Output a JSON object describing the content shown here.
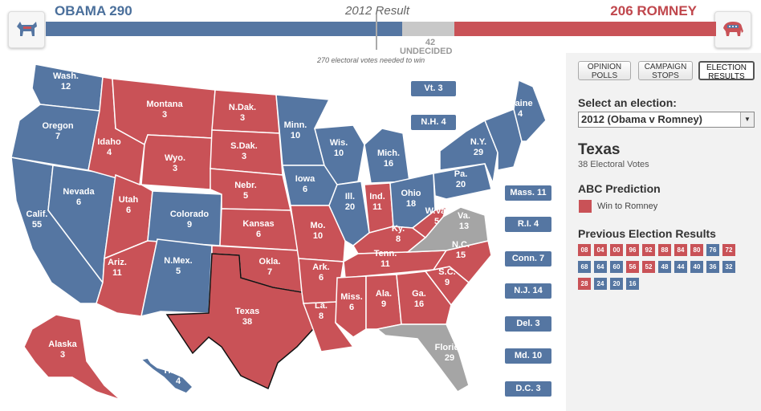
{
  "header": {
    "dem_score": "OBAMA 290",
    "rep_score": "206 ROMNEY",
    "title": "2012 Result",
    "undecided_count": "42",
    "undecided_label": "UNDECIDED",
    "needed_note": "270 electoral votes needed to win"
  },
  "colors": {
    "dem": "#5576a2",
    "rep": "#c95257",
    "undecided": "#a5a5a5"
  },
  "icons": {
    "dem_logo": "democrat-donkey-icon",
    "rep_logo": "republican-elephant-icon"
  },
  "states": [
    {
      "id": "wa",
      "name": "Wash.",
      "votes": "12",
      "party": "dem"
    },
    {
      "id": "or",
      "name": "Oregon",
      "votes": "7",
      "party": "dem"
    },
    {
      "id": "ca",
      "name": "Calif.",
      "votes": "55",
      "party": "dem"
    },
    {
      "id": "nv",
      "name": "Nevada",
      "votes": "6",
      "party": "dem"
    },
    {
      "id": "id",
      "name": "Idaho",
      "votes": "4",
      "party": "rep"
    },
    {
      "id": "mt",
      "name": "Montana",
      "votes": "3",
      "party": "rep"
    },
    {
      "id": "wy",
      "name": "Wyo.",
      "votes": "3",
      "party": "rep"
    },
    {
      "id": "ut",
      "name": "Utah",
      "votes": "6",
      "party": "rep"
    },
    {
      "id": "az",
      "name": "Ariz.",
      "votes": "11",
      "party": "rep"
    },
    {
      "id": "co",
      "name": "Colorado",
      "votes": "9",
      "party": "dem"
    },
    {
      "id": "nm",
      "name": "N.Mex.",
      "votes": "5",
      "party": "dem"
    },
    {
      "id": "nd",
      "name": "N.Dak.",
      "votes": "3",
      "party": "rep"
    },
    {
      "id": "sd",
      "name": "S.Dak.",
      "votes": "3",
      "party": "rep"
    },
    {
      "id": "ne",
      "name": "Nebr.",
      "votes": "5",
      "party": "rep"
    },
    {
      "id": "ks",
      "name": "Kansas",
      "votes": "6",
      "party": "rep"
    },
    {
      "id": "ok",
      "name": "Okla.",
      "votes": "7",
      "party": "rep"
    },
    {
      "id": "tx",
      "name": "Texas",
      "votes": "38",
      "party": "rep"
    },
    {
      "id": "mn",
      "name": "Minn.",
      "votes": "10",
      "party": "dem"
    },
    {
      "id": "ia",
      "name": "Iowa",
      "votes": "6",
      "party": "dem"
    },
    {
      "id": "mo",
      "name": "Mo.",
      "votes": "10",
      "party": "rep"
    },
    {
      "id": "ar",
      "name": "Ark.",
      "votes": "6",
      "party": "rep"
    },
    {
      "id": "la",
      "name": "La.",
      "votes": "8",
      "party": "rep"
    },
    {
      "id": "wi",
      "name": "Wis.",
      "votes": "10",
      "party": "dem"
    },
    {
      "id": "il",
      "name": "Ill.",
      "votes": "20",
      "party": "dem"
    },
    {
      "id": "mi",
      "name": "Mich.",
      "votes": "16",
      "party": "dem"
    },
    {
      "id": "in",
      "name": "Ind.",
      "votes": "11",
      "party": "rep"
    },
    {
      "id": "oh",
      "name": "Ohio",
      "votes": "18",
      "party": "dem"
    },
    {
      "id": "ky",
      "name": "Ky.",
      "votes": "8",
      "party": "rep"
    },
    {
      "id": "tn",
      "name": "Tenn.",
      "votes": "11",
      "party": "rep"
    },
    {
      "id": "ms",
      "name": "Miss.",
      "votes": "6",
      "party": "rep"
    },
    {
      "id": "al",
      "name": "Ala.",
      "votes": "9",
      "party": "rep"
    },
    {
      "id": "ga",
      "name": "Ga.",
      "votes": "16",
      "party": "rep"
    },
    {
      "id": "fl",
      "name": "Florida",
      "votes": "29",
      "party": "undecided"
    },
    {
      "id": "sc",
      "name": "S.C.",
      "votes": "9",
      "party": "rep"
    },
    {
      "id": "nc",
      "name": "N.C.",
      "votes": "15",
      "party": "rep"
    },
    {
      "id": "va",
      "name": "Va.",
      "votes": "13",
      "party": "undecided"
    },
    {
      "id": "wv",
      "name": "W.Va.",
      "votes": "5",
      "party": "rep"
    },
    {
      "id": "pa",
      "name": "Pa.",
      "votes": "20",
      "party": "dem"
    },
    {
      "id": "ny",
      "name": "N.Y.",
      "votes": "29",
      "party": "dem"
    },
    {
      "id": "me",
      "name": "Maine",
      "votes": "4",
      "party": "dem"
    },
    {
      "id": "ak",
      "name": "Alaska",
      "votes": "3",
      "party": "rep"
    },
    {
      "id": "hi",
      "name": "Hawaii",
      "votes": "4",
      "party": "dem"
    }
  ],
  "small_states": {
    "vt": "Vt. 3",
    "nh": "N.H. 4",
    "ma": "Mass. 11",
    "ri": "R.I. 4",
    "ct": "Conn. 7",
    "nj": "N.J. 14",
    "de": "Del. 3",
    "md": "Md. 10",
    "dc": "D.C. 3"
  },
  "panel": {
    "tabs": [
      "OPINION\nPOLLS",
      "CAMPAIGN\nSTOPS",
      "ELECTION\nRESULTS"
    ],
    "select_label": "Select an election:",
    "select_value": "2012 (Obama v Romney)",
    "selected_state": "Texas",
    "selected_votes": "38 Electoral Votes",
    "prediction_heading": "ABC Prediction",
    "prediction_text": "Win to Romney",
    "previous_heading": "Previous Election Results",
    "previous_results": [
      {
        "year": "08",
        "party": "R"
      },
      {
        "year": "04",
        "party": "R"
      },
      {
        "year": "00",
        "party": "R"
      },
      {
        "year": "96",
        "party": "R"
      },
      {
        "year": "92",
        "party": "R"
      },
      {
        "year": "88",
        "party": "R"
      },
      {
        "year": "84",
        "party": "R"
      },
      {
        "year": "80",
        "party": "R"
      },
      {
        "year": "76",
        "party": "D"
      },
      {
        "year": "72",
        "party": "R"
      },
      {
        "year": "68",
        "party": "D"
      },
      {
        "year": "64",
        "party": "D"
      },
      {
        "year": "60",
        "party": "D"
      },
      {
        "year": "56",
        "party": "R"
      },
      {
        "year": "52",
        "party": "R"
      },
      {
        "year": "48",
        "party": "D"
      },
      {
        "year": "44",
        "party": "D"
      },
      {
        "year": "40",
        "party": "D"
      },
      {
        "year": "36",
        "party": "D"
      },
      {
        "year": "32",
        "party": "D"
      },
      {
        "year": "28",
        "party": "R"
      },
      {
        "year": "24",
        "party": "D"
      },
      {
        "year": "20",
        "party": "D"
      },
      {
        "year": "16",
        "party": "D"
      }
    ]
  }
}
